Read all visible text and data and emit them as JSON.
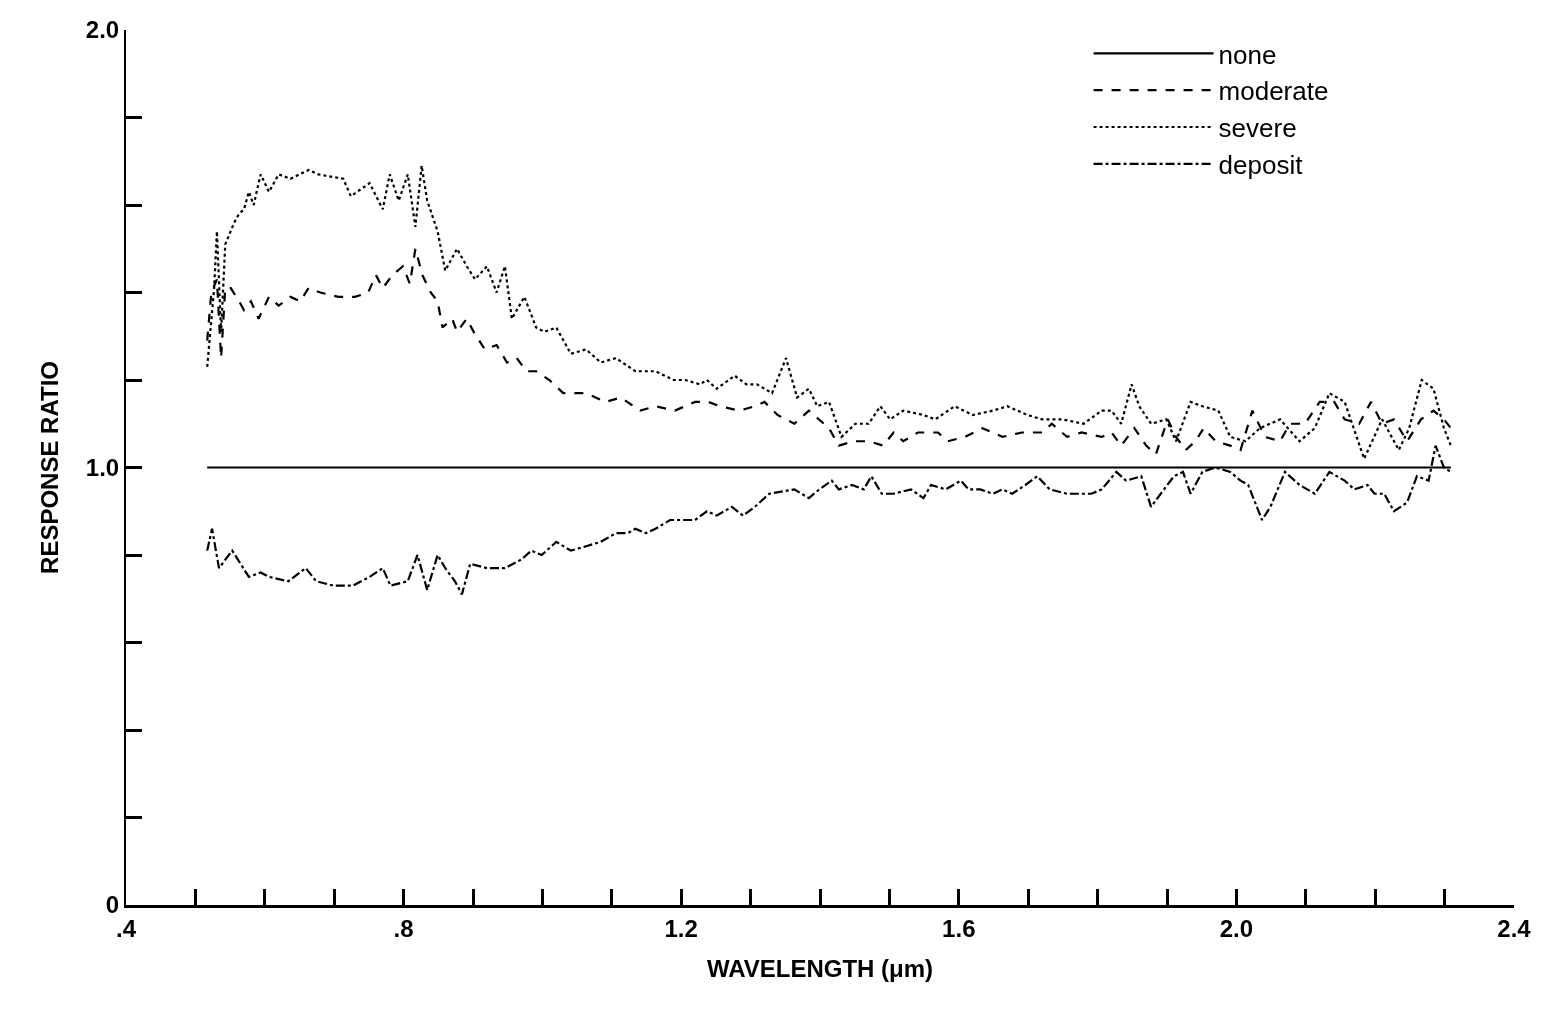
{
  "chart_data": {
    "type": "line",
    "xlabel": "WAVELENGTH (μm)",
    "ylabel": "RESPONSE RATIO",
    "xlim": [
      0.4,
      2.4
    ],
    "ylim": [
      0,
      2.0
    ],
    "xticks": [
      {
        "value": 0.4,
        "label": ".4"
      },
      {
        "value": 0.5,
        "label": null
      },
      {
        "value": 0.6,
        "label": null
      },
      {
        "value": 0.7,
        "label": null
      },
      {
        "value": 0.8,
        "label": ".8"
      },
      {
        "value": 0.9,
        "label": null
      },
      {
        "value": 1.0,
        "label": null
      },
      {
        "value": 1.1,
        "label": null
      },
      {
        "value": 1.2,
        "label": "1.2"
      },
      {
        "value": 1.3,
        "label": null
      },
      {
        "value": 1.4,
        "label": null
      },
      {
        "value": 1.5,
        "label": null
      },
      {
        "value": 1.6,
        "label": "1.6"
      },
      {
        "value": 1.7,
        "label": null
      },
      {
        "value": 1.8,
        "label": null
      },
      {
        "value": 1.9,
        "label": null
      },
      {
        "value": 2.0,
        "label": "2.0"
      },
      {
        "value": 2.1,
        "label": null
      },
      {
        "value": 2.2,
        "label": null
      },
      {
        "value": 2.3,
        "label": null
      },
      {
        "value": 2.4,
        "label": "2.4"
      }
    ],
    "yticks": [
      0,
      {
        "value": 0.2,
        "label": null
      },
      {
        "value": 0.4,
        "label": null
      },
      {
        "value": 0.6,
        "label": null
      },
      {
        "value": 0.8,
        "label": null
      },
      {
        "value": 1.0,
        "label": "1.0"
      },
      {
        "value": 1.2,
        "label": null
      },
      {
        "value": 1.4,
        "label": null
      },
      {
        "value": 1.6,
        "label": null
      },
      {
        "value": 1.8,
        "label": null
      },
      {
        "value": 2.0,
        "label": "2.0"
      }
    ],
    "grid": false,
    "legend": "top right",
    "marker": "none",
    "series": [
      {
        "name": "none",
        "color": "#000000",
        "line_style": "solid",
        "x": [
          0.517,
          2.309
        ],
        "values": [
          1.0,
          1.0
        ]
      },
      {
        "name": "moderate",
        "color": "#000000",
        "line_style": "dashed",
        "x": [
          0.517,
          0.523,
          0.531,
          0.537,
          0.543,
          0.551,
          0.563,
          0.57,
          0.58,
          0.591,
          0.606,
          0.62,
          0.637,
          0.651,
          0.663,
          0.68,
          0.706,
          0.73,
          0.749,
          0.76,
          0.77,
          0.784,
          0.799,
          0.809,
          0.817,
          0.827,
          0.839,
          0.849,
          0.856,
          0.87,
          0.877,
          0.891,
          0.901,
          0.917,
          0.934,
          0.949,
          0.963,
          0.977,
          0.991,
          1.01,
          1.03,
          1.063,
          1.091,
          1.113,
          1.141,
          1.163,
          1.191,
          1.22,
          1.239,
          1.256,
          1.284,
          1.306,
          1.32,
          1.339,
          1.363,
          1.384,
          1.413,
          1.427,
          1.449,
          1.47,
          1.491,
          1.506,
          1.52,
          1.541,
          1.57,
          1.584,
          1.609,
          1.634,
          1.663,
          1.691,
          1.72,
          1.734,
          1.756,
          1.777,
          1.806,
          1.82,
          1.834,
          1.853,
          1.87,
          1.884,
          1.901,
          1.913,
          1.927,
          1.941,
          1.953,
          1.97,
          1.991,
          2.006,
          2.023,
          2.041,
          2.063,
          2.077,
          2.099,
          2.12,
          2.141,
          2.156,
          2.177,
          2.194,
          2.21,
          2.227,
          2.246,
          2.266,
          2.284,
          2.299,
          2.309
        ],
        "values": [
          1.29,
          1.4,
          1.43,
          1.25,
          1.41,
          1.41,
          1.38,
          1.36,
          1.38,
          1.34,
          1.39,
          1.37,
          1.39,
          1.38,
          1.41,
          1.4,
          1.39,
          1.39,
          1.4,
          1.44,
          1.41,
          1.44,
          1.46,
          1.42,
          1.5,
          1.44,
          1.4,
          1.38,
          1.32,
          1.34,
          1.31,
          1.34,
          1.31,
          1.27,
          1.28,
          1.24,
          1.25,
          1.22,
          1.22,
          1.2,
          1.17,
          1.17,
          1.15,
          1.16,
          1.13,
          1.14,
          1.13,
          1.15,
          1.15,
          1.14,
          1.13,
          1.14,
          1.15,
          1.12,
          1.1,
          1.13,
          1.09,
          1.05,
          1.06,
          1.06,
          1.05,
          1.08,
          1.06,
          1.08,
          1.08,
          1.06,
          1.07,
          1.09,
          1.07,
          1.08,
          1.08,
          1.1,
          1.07,
          1.08,
          1.07,
          1.08,
          1.05,
          1.09,
          1.05,
          1.03,
          1.11,
          1.07,
          1.04,
          1.06,
          1.09,
          1.06,
          1.05,
          1.04,
          1.13,
          1.07,
          1.06,
          1.1,
          1.1,
          1.15,
          1.15,
          1.11,
          1.1,
          1.15,
          1.1,
          1.11,
          1.06,
          1.11,
          1.13,
          1.11,
          1.09
        ]
      },
      {
        "name": "severe",
        "color": "#000000",
        "line_style": "dotted",
        "x": [
          0.517,
          0.527,
          0.531,
          0.537,
          0.543,
          0.556,
          0.563,
          0.57,
          0.577,
          0.584,
          0.594,
          0.606,
          0.62,
          0.637,
          0.663,
          0.677,
          0.713,
          0.724,
          0.751,
          0.77,
          0.78,
          0.793,
          0.806,
          0.817,
          0.826,
          0.834,
          0.849,
          0.86,
          0.877,
          0.891,
          0.903,
          0.92,
          0.934,
          0.946,
          0.956,
          0.974,
          0.991,
          1.003,
          1.02,
          1.041,
          1.063,
          1.084,
          1.106,
          1.134,
          1.163,
          1.189,
          1.206,
          1.227,
          1.237,
          1.251,
          1.277,
          1.294,
          1.309,
          1.331,
          1.351,
          1.367,
          1.384,
          1.396,
          1.413,
          1.431,
          1.451,
          1.47,
          1.487,
          1.501,
          1.52,
          1.549,
          1.566,
          1.594,
          1.62,
          1.649,
          1.67,
          1.699,
          1.72,
          1.749,
          1.78,
          1.806,
          1.82,
          1.834,
          1.849,
          1.86,
          1.877,
          1.899,
          1.913,
          1.934,
          1.951,
          1.974,
          1.991,
          2.013,
          2.034,
          2.063,
          2.091,
          2.113,
          2.134,
          2.156,
          2.184,
          2.21,
          2.234,
          2.249,
          2.267,
          2.284,
          2.299,
          2.309
        ],
        "values": [
          1.23,
          1.41,
          1.54,
          1.31,
          1.51,
          1.56,
          1.58,
          1.59,
          1.63,
          1.6,
          1.67,
          1.63,
          1.67,
          1.66,
          1.68,
          1.67,
          1.66,
          1.62,
          1.65,
          1.59,
          1.67,
          1.61,
          1.67,
          1.55,
          1.69,
          1.61,
          1.54,
          1.45,
          1.5,
          1.46,
          1.43,
          1.46,
          1.4,
          1.46,
          1.34,
          1.39,
          1.32,
          1.31,
          1.32,
          1.26,
          1.27,
          1.24,
          1.25,
          1.22,
          1.22,
          1.2,
          1.2,
          1.19,
          1.2,
          1.18,
          1.21,
          1.19,
          1.19,
          1.17,
          1.25,
          1.16,
          1.18,
          1.14,
          1.15,
          1.07,
          1.1,
          1.1,
          1.14,
          1.11,
          1.13,
          1.12,
          1.11,
          1.14,
          1.12,
          1.13,
          1.14,
          1.12,
          1.11,
          1.11,
          1.1,
          1.13,
          1.13,
          1.1,
          1.19,
          1.14,
          1.1,
          1.11,
          1.06,
          1.15,
          1.14,
          1.13,
          1.07,
          1.06,
          1.09,
          1.11,
          1.06,
          1.09,
          1.17,
          1.15,
          1.02,
          1.11,
          1.04,
          1.09,
          1.2,
          1.18,
          1.09,
          1.05
        ]
      },
      {
        "name": "deposit",
        "color": "#000000",
        "line_style": "dashdot",
        "x": [
          0.517,
          0.524,
          0.534,
          0.553,
          0.577,
          0.594,
          0.606,
          0.634,
          0.659,
          0.674,
          0.699,
          0.727,
          0.751,
          0.77,
          0.781,
          0.806,
          0.82,
          0.834,
          0.849,
          0.86,
          0.874,
          0.884,
          0.896,
          0.92,
          0.946,
          0.97,
          0.984,
          0.999,
          1.02,
          1.041,
          1.063,
          1.084,
          1.106,
          1.123,
          1.134,
          1.149,
          1.163,
          1.184,
          1.199,
          1.22,
          1.237,
          1.251,
          1.273,
          1.289,
          1.306,
          1.327,
          1.363,
          1.384,
          1.399,
          1.417,
          1.427,
          1.446,
          1.463,
          1.474,
          1.489,
          1.506,
          1.531,
          1.549,
          1.56,
          1.581,
          1.603,
          1.614,
          1.631,
          1.649,
          1.663,
          1.677,
          1.696,
          1.713,
          1.731,
          1.756,
          1.777,
          1.791,
          1.806,
          1.827,
          1.841,
          1.863,
          1.877,
          1.891,
          1.91,
          1.923,
          1.934,
          1.951,
          1.97,
          1.991,
          2.006,
          2.017,
          2.037,
          2.049,
          2.07,
          2.091,
          2.113,
          2.134,
          2.156,
          2.17,
          2.189,
          2.199,
          2.213,
          2.227,
          2.246,
          2.26,
          2.277,
          2.287,
          2.299,
          2.309
        ],
        "values": [
          0.81,
          0.86,
          0.77,
          0.81,
          0.75,
          0.76,
          0.75,
          0.74,
          0.77,
          0.74,
          0.73,
          0.73,
          0.75,
          0.77,
          0.73,
          0.74,
          0.8,
          0.72,
          0.8,
          0.77,
          0.74,
          0.71,
          0.78,
          0.77,
          0.77,
          0.79,
          0.81,
          0.8,
          0.83,
          0.81,
          0.82,
          0.83,
          0.85,
          0.85,
          0.86,
          0.85,
          0.86,
          0.88,
          0.88,
          0.88,
          0.9,
          0.89,
          0.91,
          0.89,
          0.91,
          0.94,
          0.95,
          0.93,
          0.95,
          0.97,
          0.95,
          0.96,
          0.95,
          0.98,
          0.94,
          0.94,
          0.95,
          0.93,
          0.96,
          0.95,
          0.97,
          0.95,
          0.95,
          0.94,
          0.95,
          0.94,
          0.96,
          0.98,
          0.95,
          0.94,
          0.94,
          0.94,
          0.95,
          0.99,
          0.97,
          0.98,
          0.91,
          0.94,
          0.98,
          0.99,
          0.94,
          0.99,
          1.0,
          0.99,
          0.97,
          0.96,
          0.88,
          0.91,
          0.99,
          0.96,
          0.94,
          0.99,
          0.97,
          0.95,
          0.96,
          0.94,
          0.94,
          0.9,
          0.92,
          0.98,
          0.97,
          1.05,
          1.0,
          0.99
        ]
      }
    ]
  }
}
